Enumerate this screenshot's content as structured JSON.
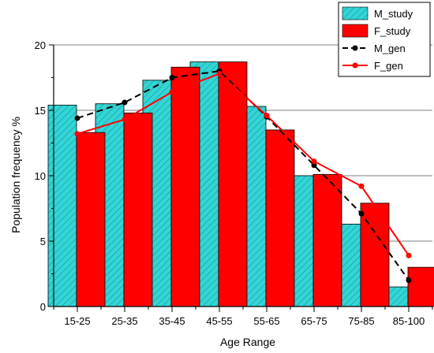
{
  "chart_data": {
    "type": "bar",
    "xlabel": "Age Range",
    "ylabel": "Population frequency %",
    "ylim": [
      0,
      20
    ],
    "yticks": [
      0,
      5,
      10,
      15,
      20
    ],
    "grid": true,
    "legend_position": "top-right",
    "categories": [
      "15-25",
      "25-35",
      "35-45",
      "45-55",
      "55-65",
      "65-75",
      "75-85",
      "85-100"
    ],
    "bar_series": [
      {
        "name": "M_study",
        "color": "#33d6d6",
        "pattern": "hatched",
        "values": [
          15.4,
          15.5,
          17.3,
          18.7,
          15.3,
          10.0,
          6.3,
          1.5
        ]
      },
      {
        "name": "F_study",
        "color": "#ff0000",
        "pattern": "solid",
        "values": [
          13.3,
          14.8,
          18.3,
          18.7,
          13.5,
          10.1,
          7.9,
          3.0
        ]
      }
    ],
    "line_series": [
      {
        "name": "M_gen",
        "color": "#000000",
        "dash": "dashed",
        "values": [
          14.4,
          15.6,
          17.5,
          18.0,
          14.5,
          10.8,
          7.1,
          2.0
        ]
      },
      {
        "name": "F_gen",
        "color": "#ff0000",
        "dash": "solid",
        "values": [
          13.2,
          14.3,
          16.4,
          17.8,
          14.6,
          11.1,
          9.2,
          3.9
        ]
      }
    ]
  }
}
